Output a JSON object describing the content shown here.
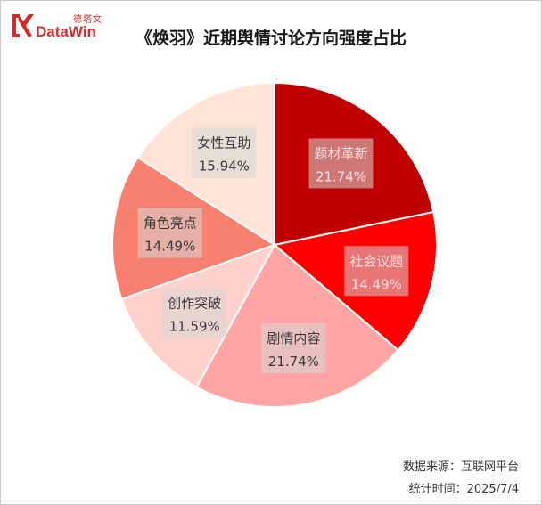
{
  "logo": {
    "cn": "德塔文",
    "en": "DataWin",
    "color": "#d42a2a"
  },
  "footer": {
    "source": "数据来源：互联网平台",
    "date": "统计时间：2025/7/4"
  },
  "chart_data": {
    "type": "pie",
    "title": "《焕羽》近期舆情讨论方向强度占比",
    "start": "12 o'clock",
    "direction": "clockwise",
    "slices": [
      {
        "label": "题材革新",
        "value": 21.74,
        "display": "21.74%",
        "color": "#c00000"
      },
      {
        "label": "社会议题",
        "value": 14.49,
        "display": "14.49%",
        "color": "#ff0000"
      },
      {
        "label": "剧情内容",
        "value": 21.74,
        "display": "21.74%",
        "color": "#ffa5a5"
      },
      {
        "label": "创作突破",
        "value": 11.59,
        "display": "11.59%",
        "color": "#ffd0cc"
      },
      {
        "label": "角色亮点",
        "value": 14.49,
        "display": "14.49%",
        "color": "#f88070"
      },
      {
        "label": "女性互助",
        "value": 15.94,
        "display": "15.94%",
        "color": "#fde3d8"
      }
    ]
  }
}
